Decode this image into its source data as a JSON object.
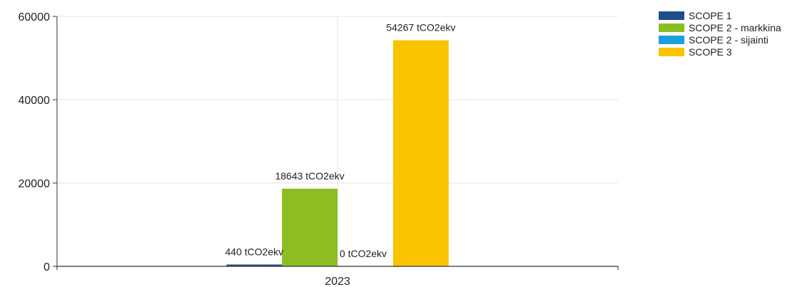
{
  "chart_data": {
    "type": "bar",
    "title": "",
    "xlabel": "",
    "ylabel": "",
    "categories": [
      "2023"
    ],
    "ylim": [
      0,
      60000
    ],
    "yticks": [
      "0",
      "20000",
      "40000",
      "60000"
    ],
    "grid": true,
    "legend_position": "top-right",
    "series": [
      {
        "name": "SCOPE 1",
        "values": [
          440
        ],
        "label": "440 tCO2ekv",
        "color": "#1f4e8c"
      },
      {
        "name": "SCOPE 2 - markkina",
        "values": [
          18643
        ],
        "label": "18643 tCO2ekv",
        "color": "#8cbd23"
      },
      {
        "name": "SCOPE 2 - sijainti",
        "values": [
          0
        ],
        "label": "0 tCO2ekv",
        "color": "#1aa0dc"
      },
      {
        "name": "SCOPE 3",
        "values": [
          54267
        ],
        "label": "54267 tCO2ekv",
        "color": "#f9c300"
      }
    ]
  }
}
